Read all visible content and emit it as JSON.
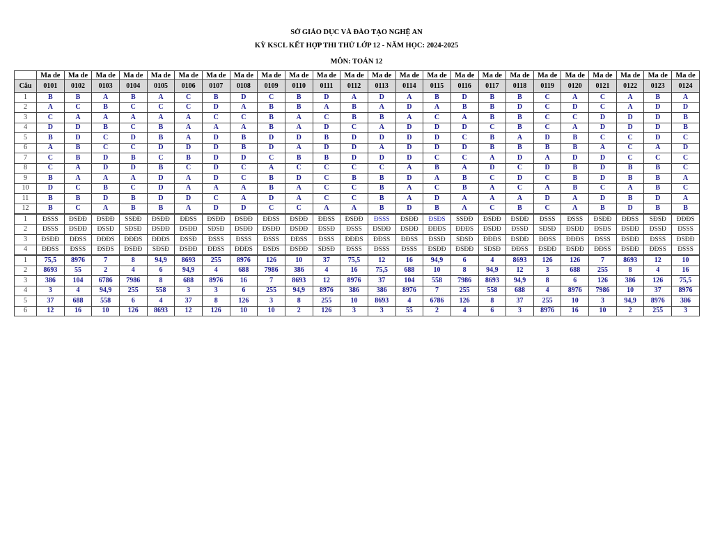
{
  "header": {
    "line1": "SỞ GIÁO DỤC VÀ ĐÀO TẠO NGHỆ AN",
    "line2": "KỲ KSCL KẾT HỢP THI THỬ LỚP 12 - NĂM HỌC: 2024-2025",
    "line3": "MÔN: TOÁN 12"
  },
  "table": {
    "ma_de_label": "Ma de",
    "cau_label": "Câu",
    "colors": {
      "answer": "#1a1a8c",
      "header_bg": "#d9d9d9",
      "highlight": "#2b2bb0"
    },
    "mc_questions": [
      "1",
      "2",
      "3",
      "4",
      "5",
      "6",
      "7",
      "8",
      "9",
      "10",
      "11",
      "12"
    ],
    "ds_questions": [
      "1",
      "2",
      "3",
      "4"
    ],
    "num_questions": [
      "1",
      "2",
      "3",
      "4",
      "5",
      "6"
    ],
    "ds_highlight": [
      {
        "code": "0113",
        "question": "1"
      },
      {
        "code": "0115",
        "question": "1"
      }
    ],
    "columns": [
      {
        "code": "0101",
        "mc": [
          "B",
          "A",
          "C",
          "D",
          "B",
          "A",
          "C",
          "C",
          "B",
          "D",
          "B",
          "B"
        ],
        "ds": [
          "ĐSSS",
          "ĐSSS",
          "ĐSĐĐ",
          "ĐĐSS"
        ],
        "num": [
          "75,5",
          "8693",
          "386",
          "3",
          "37",
          "12"
        ]
      },
      {
        "code": "0102",
        "mc": [
          "B",
          "C",
          "A",
          "D",
          "D",
          "B",
          "B",
          "A",
          "A",
          "C",
          "B",
          "C"
        ],
        "ds": [
          "ĐSĐĐ",
          "ĐSĐĐ",
          "ĐĐSS",
          "ĐSSS"
        ],
        "num": [
          "8976",
          "55",
          "104",
          "4",
          "688",
          "16"
        ]
      },
      {
        "code": "0103",
        "mc": [
          "A",
          "B",
          "A",
          "B",
          "C",
          "C",
          "D",
          "D",
          "A",
          "B",
          "D",
          "A"
        ],
        "ds": [
          "ĐSĐĐ",
          "ĐSSĐ",
          "ĐĐĐS",
          "ĐSĐS"
        ],
        "num": [
          "7",
          "2",
          "6786",
          "94,9",
          "558",
          "10"
        ]
      },
      {
        "code": "0104",
        "mc": [
          "B",
          "C",
          "A",
          "C",
          "D",
          "C",
          "B",
          "D",
          "A",
          "C",
          "B",
          "B"
        ],
        "ds": [
          "SSĐĐ",
          "SĐSĐ",
          "ĐĐĐS",
          "ĐSĐĐ"
        ],
        "num": [
          "8",
          "4",
          "7986",
          "255",
          "6",
          "126"
        ]
      },
      {
        "code": "0105",
        "mc": [
          "A",
          "C",
          "A",
          "B",
          "B",
          "D",
          "C",
          "B",
          "D",
          "D",
          "D",
          "B"
        ],
        "ds": [
          "ĐSĐĐ",
          "ĐSĐĐ",
          "ĐĐĐS",
          "SĐSĐ"
        ],
        "num": [
          "94,9",
          "6",
          "8",
          "558",
          "4",
          "8693"
        ]
      },
      {
        "code": "0106",
        "mc": [
          "C",
          "C",
          "A",
          "A",
          "A",
          "D",
          "B",
          "C",
          "A",
          "A",
          "D",
          "A"
        ],
        "ds": [
          "ĐĐSS",
          "ĐSĐĐ",
          "ĐSSĐ",
          "ĐSĐĐ"
        ],
        "num": [
          "8693",
          "94,9",
          "688",
          "3",
          "37",
          "12"
        ]
      },
      {
        "code": "0107",
        "mc": [
          "B",
          "D",
          "C",
          "A",
          "D",
          "D",
          "D",
          "D",
          "D",
          "A",
          "C",
          "D"
        ],
        "ds": [
          "ĐSĐĐ",
          "SĐSĐ",
          "ĐSSS",
          "ĐĐSS"
        ],
        "num": [
          "255",
          "4",
          "8976",
          "3",
          "8",
          "126"
        ]
      },
      {
        "code": "0108",
        "mc": [
          "D",
          "A",
          "C",
          "A",
          "B",
          "B",
          "D",
          "C",
          "C",
          "A",
          "A",
          "D"
        ],
        "ds": [
          "ĐSĐĐ",
          "ĐSĐĐ",
          "ĐSSS",
          "ĐĐĐS"
        ],
        "num": [
          "8976",
          "688",
          "16",
          "6",
          "126",
          "10"
        ]
      },
      {
        "code": "0109",
        "mc": [
          "C",
          "B",
          "B",
          "B",
          "D",
          "D",
          "C",
          "A",
          "B",
          "B",
          "D",
          "C"
        ],
        "ds": [
          "ĐĐSS",
          "ĐSĐĐ",
          "ĐSSS",
          "ĐSĐS"
        ],
        "num": [
          "126",
          "7986",
          "7",
          "255",
          "3",
          "10"
        ]
      },
      {
        "code": "0110",
        "mc": [
          "B",
          "B",
          "A",
          "A",
          "D",
          "A",
          "B",
          "C",
          "D",
          "A",
          "A",
          "C"
        ],
        "ds": [
          "ĐSĐĐ",
          "ĐSĐĐ",
          "ĐĐSS",
          "ĐSĐĐ"
        ],
        "num": [
          "10",
          "386",
          "8693",
          "94,9",
          "8",
          "2"
        ]
      },
      {
        "code": "0111",
        "mc": [
          "D",
          "A",
          "C",
          "D",
          "B",
          "D",
          "B",
          "C",
          "C",
          "C",
          "C",
          "A"
        ],
        "ds": [
          "ĐĐSS",
          "ĐSSĐ",
          "ĐSSS",
          "SĐSĐ"
        ],
        "num": [
          "37",
          "4",
          "12",
          "8976",
          "255",
          "126"
        ]
      },
      {
        "code": "0112",
        "mc": [
          "A",
          "B",
          "B",
          "C",
          "D",
          "D",
          "D",
          "C",
          "B",
          "C",
          "C",
          "A"
        ],
        "ds": [
          "ĐSĐĐ",
          "ĐSSS",
          "ĐĐĐS",
          "ĐSSS"
        ],
        "num": [
          "75,5",
          "16",
          "8976",
          "386",
          "10",
          "3"
        ]
      },
      {
        "code": "0113",
        "mc": [
          "D",
          "A",
          "B",
          "A",
          "D",
          "A",
          "D",
          "C",
          "B",
          "B",
          "B",
          "B"
        ],
        "ds": [
          "ĐSSS",
          "ĐSĐĐ",
          "ĐĐSS",
          "ĐSSS"
        ],
        "num": [
          "12",
          "75,5",
          "37",
          "386",
          "8693",
          "3"
        ]
      },
      {
        "code": "0114",
        "mc": [
          "A",
          "D",
          "A",
          "D",
          "D",
          "D",
          "D",
          "A",
          "D",
          "A",
          "A",
          "D"
        ],
        "ds": [
          "ĐSĐĐ",
          "ĐSĐĐ",
          "ĐĐSS",
          "ĐSSS"
        ],
        "num": [
          "16",
          "688",
          "104",
          "8976",
          "4",
          "55"
        ]
      },
      {
        "code": "0115",
        "mc": [
          "B",
          "A",
          "C",
          "D",
          "D",
          "D",
          "C",
          "B",
          "A",
          "C",
          "D",
          "B"
        ],
        "ds": [
          "ĐSĐS",
          "ĐĐĐS",
          "ĐSSĐ",
          "ĐSĐĐ"
        ],
        "num": [
          "94,9",
          "10",
          "558",
          "7",
          "6786",
          "2"
        ]
      },
      {
        "code": "0116",
        "mc": [
          "D",
          "B",
          "A",
          "D",
          "C",
          "D",
          "C",
          "A",
          "B",
          "B",
          "A",
          "A"
        ],
        "ds": [
          "SSĐĐ",
          "ĐĐĐS",
          "SĐSĐ",
          "ĐSĐĐ"
        ],
        "num": [
          "6",
          "8",
          "7986",
          "255",
          "126",
          "4"
        ]
      },
      {
        "code": "0117",
        "mc": [
          "B",
          "B",
          "B",
          "C",
          "B",
          "B",
          "A",
          "D",
          "C",
          "A",
          "A",
          "C"
        ],
        "ds": [
          "ĐSĐĐ",
          "ĐSĐĐ",
          "ĐĐĐS",
          "SĐSĐ"
        ],
        "num": [
          "4",
          "94,9",
          "8693",
          "558",
          "8",
          "6"
        ]
      },
      {
        "code": "0118",
        "mc": [
          "B",
          "D",
          "B",
          "B",
          "A",
          "B",
          "D",
          "C",
          "D",
          "C",
          "A",
          "B"
        ],
        "ds": [
          "ĐSĐĐ",
          "ĐSSĐ",
          "ĐSĐĐ",
          "ĐĐSS"
        ],
        "num": [
          "8693",
          "12",
          "94,9",
          "688",
          "37",
          "3"
        ]
      },
      {
        "code": "0119",
        "mc": [
          "C",
          "C",
          "C",
          "C",
          "D",
          "B",
          "A",
          "D",
          "C",
          "A",
          "D",
          "C"
        ],
        "ds": [
          "ĐSSS",
          "SĐSĐ",
          "ĐĐSS",
          "ĐSĐĐ"
        ],
        "num": [
          "126",
          "3",
          "8",
          "4",
          "255",
          "8976"
        ]
      },
      {
        "code": "0120",
        "mc": [
          "A",
          "D",
          "C",
          "A",
          "B",
          "B",
          "D",
          "B",
          "B",
          "B",
          "A",
          "A"
        ],
        "ds": [
          "ĐSSS",
          "ĐSĐĐ",
          "ĐĐĐS",
          "ĐSĐĐ"
        ],
        "num": [
          "126",
          "688",
          "6",
          "8976",
          "10",
          "16"
        ]
      },
      {
        "code": "0121",
        "mc": [
          "C",
          "C",
          "D",
          "D",
          "C",
          "A",
          "D",
          "D",
          "D",
          "C",
          "D",
          "B"
        ],
        "ds": [
          "ĐSĐĐ",
          "ĐSĐS",
          "ĐSSS",
          "ĐĐSS"
        ],
        "num": [
          "7",
          "255",
          "126",
          "7986",
          "3",
          "10"
        ]
      },
      {
        "code": "0122",
        "mc": [
          "A",
          "A",
          "D",
          "D",
          "C",
          "C",
          "C",
          "B",
          "B",
          "A",
          "B",
          "D"
        ],
        "ds": [
          "ĐĐSS",
          "ĐSĐĐ",
          "ĐSĐĐ",
          "ĐSĐĐ"
        ],
        "num": [
          "8693",
          "8",
          "386",
          "10",
          "94,9",
          "2"
        ]
      },
      {
        "code": "0123",
        "mc": [
          "B",
          "D",
          "D",
          "D",
          "D",
          "A",
          "C",
          "B",
          "B",
          "B",
          "D",
          "B"
        ],
        "ds": [
          "SĐSĐ",
          "ĐSSĐ",
          "ĐSSS",
          "ĐĐSS"
        ],
        "num": [
          "12",
          "4",
          "126",
          "37",
          "8976",
          "255"
        ]
      },
      {
        "code": "0124",
        "mc": [
          "A",
          "D",
          "B",
          "B",
          "C",
          "D",
          "C",
          "C",
          "A",
          "C",
          "A",
          "B"
        ],
        "ds": [
          "ĐĐĐS",
          "ĐSSS",
          "ĐSĐĐ",
          "ĐSSS"
        ],
        "num": [
          "10",
          "16",
          "75,5",
          "8976",
          "386",
          "3"
        ]
      }
    ]
  }
}
